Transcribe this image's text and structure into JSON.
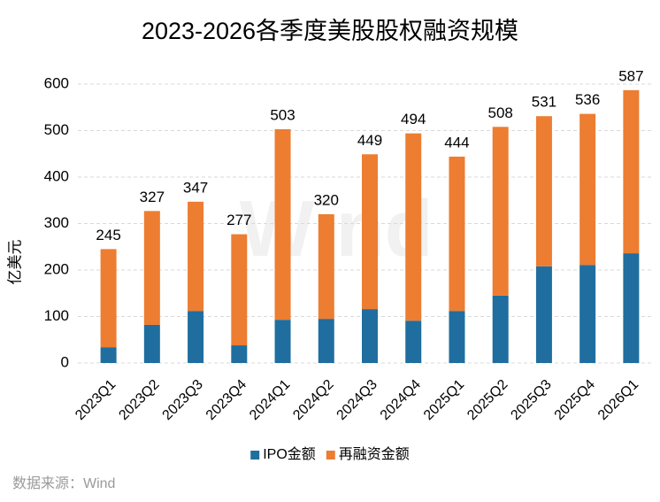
{
  "chart_data": {
    "type": "stacked_bar",
    "title": "2023-2026各季度美股股权融资规模",
    "y_label": "亿美元",
    "categories": [
      "2023Q1",
      "2023Q2",
      "2023Q3",
      "2023Q4",
      "2024Q1",
      "2024Q2",
      "2024Q3",
      "2024Q4",
      "2025Q1",
      "2025Q2",
      "2025Q3",
      "2025Q4",
      "2026Q1"
    ],
    "series": [
      {
        "name": "IPO金额",
        "color": "#1f6e9f",
        "values": [
          34,
          82,
          112,
          38,
          93,
          95,
          116,
          91,
          112,
          145,
          208,
          211,
          236
        ]
      },
      {
        "name": "再融资金额",
        "color": "#ed7d31",
        "values": [
          211,
          245,
          235,
          239,
          410,
          225,
          333,
          403,
          332,
          363,
          323,
          325,
          351
        ]
      }
    ],
    "totals": [
      245,
      327,
      347,
      277,
      503,
      320,
      449,
      494,
      444,
      508,
      531,
      536,
      587
    ],
    "ylim": [
      0,
      600
    ],
    "yticks": [
      0,
      100,
      200,
      300,
      400,
      500,
      600
    ],
    "grid": true,
    "legend": "bottom",
    "watermark": "Wind",
    "source": "数据来源：Wind"
  }
}
